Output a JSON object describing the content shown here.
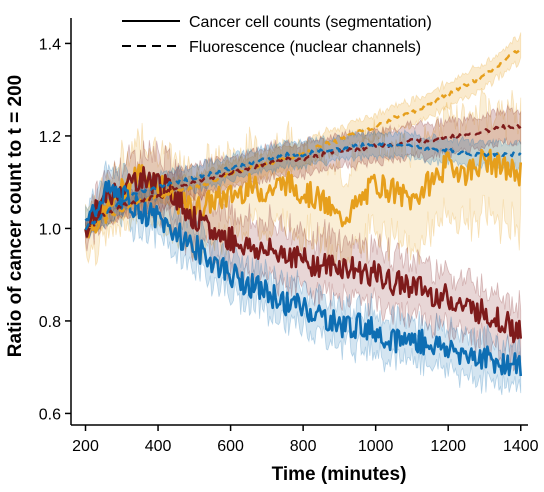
{
  "chart_data": {
    "type": "line",
    "xlabel": "Time (minutes)",
    "ylabel": "Ratio of cancer count to t = 200",
    "xlim": [
      160,
      1420
    ],
    "ylim": [
      0.575,
      1.455
    ],
    "x_ticks": [
      200,
      400,
      600,
      800,
      1000,
      1200,
      1400
    ],
    "y_ticks": [
      0.6,
      0.8,
      1.0,
      1.2,
      1.4
    ],
    "x_tick_labels": [
      "200",
      "400",
      "600",
      "800",
      "1000",
      "1200",
      "1400"
    ],
    "y_tick_labels": [
      "0.6",
      "0.8",
      "1.0",
      "1.2",
      "1.4"
    ],
    "grid": false,
    "legend": {
      "placement": "top",
      "entries": [
        {
          "style": "solid",
          "label": "Cancer cell counts (segmentation)"
        },
        {
          "style": "dashed",
          "label": "Fluorescence (nuclear channels)"
        }
      ]
    },
    "series": [
      {
        "color": "#e69f1c",
        "style": "solid",
        "x": [
          200,
          250,
          300,
          350,
          400,
          450,
          500,
          550,
          600,
          650,
          700,
          750,
          800,
          850,
          900,
          950,
          1000,
          1050,
          1100,
          1150,
          1200,
          1250,
          1300,
          1350,
          1400
        ],
        "y": [
          1.0,
          1.03,
          1.08,
          1.12,
          1.1,
          1.06,
          1.04,
          1.06,
          1.07,
          1.09,
          1.08,
          1.1,
          1.08,
          1.06,
          1.02,
          1.05,
          1.1,
          1.08,
          1.06,
          1.1,
          1.14,
          1.12,
          1.15,
          1.13,
          1.12
        ],
        "band": [
          0.06,
          0.07,
          0.08,
          0.09,
          0.09,
          0.09,
          0.1,
          0.1,
          0.1,
          0.1,
          0.1,
          0.11,
          0.11,
          0.11,
          0.11,
          0.12,
          0.12,
          0.12,
          0.12,
          0.13,
          0.13,
          0.13,
          0.13,
          0.14,
          0.14
        ]
      },
      {
        "color": "#7e1b1b",
        "style": "solid",
        "x": [
          200,
          250,
          300,
          350,
          400,
          450,
          500,
          550,
          600,
          650,
          700,
          750,
          800,
          850,
          900,
          950,
          1000,
          1050,
          1100,
          1150,
          1200,
          1250,
          1300,
          1350,
          1400
        ],
        "y": [
          1.0,
          1.06,
          1.09,
          1.11,
          1.1,
          1.07,
          1.02,
          0.99,
          0.98,
          0.96,
          0.95,
          0.95,
          0.93,
          0.92,
          0.92,
          0.91,
          0.9,
          0.88,
          0.88,
          0.86,
          0.85,
          0.83,
          0.82,
          0.8,
          0.77
        ],
        "band": [
          0.03,
          0.05,
          0.06,
          0.06,
          0.07,
          0.07,
          0.07,
          0.07,
          0.07,
          0.07,
          0.07,
          0.07,
          0.07,
          0.07,
          0.07,
          0.07,
          0.07,
          0.07,
          0.07,
          0.07,
          0.07,
          0.07,
          0.07,
          0.07,
          0.07
        ]
      },
      {
        "color": "#0e6eb3",
        "style": "solid",
        "x": [
          200,
          250,
          300,
          350,
          400,
          450,
          500,
          550,
          600,
          650,
          700,
          750,
          800,
          850,
          900,
          950,
          1000,
          1050,
          1100,
          1150,
          1200,
          1250,
          1300,
          1350,
          1400
        ],
        "y": [
          1.0,
          1.08,
          1.07,
          1.04,
          1.02,
          0.99,
          0.96,
          0.93,
          0.9,
          0.88,
          0.86,
          0.84,
          0.83,
          0.81,
          0.79,
          0.79,
          0.78,
          0.76,
          0.76,
          0.75,
          0.74,
          0.73,
          0.72,
          0.71,
          0.7
        ],
        "band": [
          0.03,
          0.05,
          0.05,
          0.05,
          0.05,
          0.05,
          0.05,
          0.05,
          0.05,
          0.05,
          0.05,
          0.05,
          0.05,
          0.05,
          0.05,
          0.05,
          0.05,
          0.05,
          0.05,
          0.05,
          0.05,
          0.05,
          0.05,
          0.05,
          0.05
        ]
      },
      {
        "color": "#e69f1c",
        "style": "dashed",
        "x": [
          200,
          250,
          300,
          350,
          400,
          450,
          500,
          550,
          600,
          650,
          700,
          750,
          800,
          850,
          900,
          950,
          1000,
          1050,
          1100,
          1150,
          1200,
          1250,
          1300,
          1350,
          1400
        ],
        "y": [
          1.0,
          1.02,
          1.04,
          1.06,
          1.07,
          1.08,
          1.09,
          1.1,
          1.12,
          1.13,
          1.14,
          1.15,
          1.16,
          1.18,
          1.19,
          1.21,
          1.22,
          1.24,
          1.25,
          1.27,
          1.29,
          1.31,
          1.33,
          1.36,
          1.39
        ],
        "band": [
          0.01,
          0.02,
          0.02,
          0.02,
          0.02,
          0.03,
          0.03,
          0.03,
          0.03,
          0.03,
          0.03,
          0.03,
          0.03,
          0.03,
          0.03,
          0.03,
          0.03,
          0.03,
          0.03,
          0.03,
          0.03,
          0.03,
          0.03,
          0.03,
          0.03
        ]
      },
      {
        "color": "#7e1b1b",
        "style": "dashed",
        "x": [
          200,
          250,
          300,
          350,
          400,
          450,
          500,
          550,
          600,
          650,
          700,
          750,
          800,
          850,
          900,
          950,
          1000,
          1050,
          1100,
          1150,
          1200,
          1250,
          1300,
          1350,
          1400
        ],
        "y": [
          1.0,
          1.03,
          1.05,
          1.06,
          1.07,
          1.09,
          1.1,
          1.11,
          1.12,
          1.13,
          1.14,
          1.15,
          1.15,
          1.16,
          1.17,
          1.17,
          1.18,
          1.18,
          1.19,
          1.19,
          1.2,
          1.2,
          1.21,
          1.22,
          1.22
        ],
        "band": [
          0.02,
          0.03,
          0.03,
          0.03,
          0.04,
          0.04,
          0.04,
          0.04,
          0.04,
          0.04,
          0.04,
          0.04,
          0.04,
          0.04,
          0.04,
          0.04,
          0.04,
          0.04,
          0.04,
          0.04,
          0.04,
          0.04,
          0.04,
          0.04,
          0.04
        ]
      },
      {
        "color": "#0e6eb3",
        "style": "dashed",
        "x": [
          200,
          250,
          300,
          350,
          400,
          450,
          500,
          550,
          600,
          650,
          700,
          750,
          800,
          850,
          900,
          950,
          1000,
          1050,
          1100,
          1150,
          1200,
          1250,
          1300,
          1350,
          1400
        ],
        "y": [
          1.0,
          1.03,
          1.06,
          1.08,
          1.09,
          1.1,
          1.11,
          1.12,
          1.13,
          1.14,
          1.15,
          1.16,
          1.16,
          1.17,
          1.17,
          1.18,
          1.18,
          1.18,
          1.18,
          1.17,
          1.17,
          1.16,
          1.16,
          1.16,
          1.16
        ],
        "band": [
          0.02,
          0.03,
          0.03,
          0.03,
          0.03,
          0.03,
          0.03,
          0.03,
          0.03,
          0.03,
          0.03,
          0.03,
          0.03,
          0.03,
          0.03,
          0.03,
          0.03,
          0.03,
          0.03,
          0.03,
          0.03,
          0.03,
          0.03,
          0.03,
          0.03
        ]
      }
    ]
  }
}
